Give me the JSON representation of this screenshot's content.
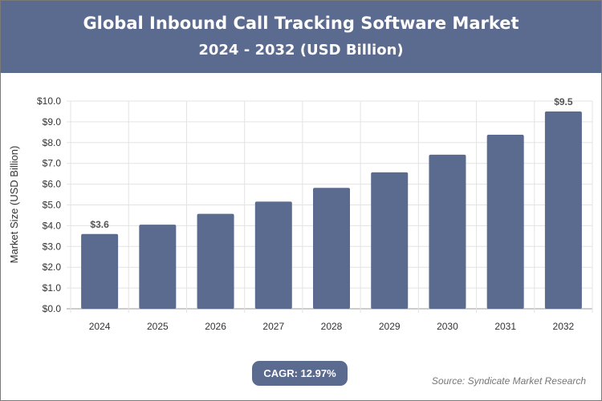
{
  "header": {
    "title": "Global Inbound Call Tracking Software Market",
    "subtitle": "2024 - 2032 (USD Billion)"
  },
  "footer": {
    "cagr": "CAGR: 12.97%",
    "source": "Source: Syndicate Market Research"
  },
  "colors": {
    "bar": "#5b6a8f",
    "header": "#5b6a8f"
  },
  "chart_data": {
    "type": "bar",
    "title": "Global Inbound Call Tracking Software Market",
    "subtitle": "2024 - 2032 (USD Billion)",
    "xlabel": "",
    "ylabel": "Market Size (USD Billion)",
    "categories": [
      "2024",
      "2025",
      "2026",
      "2027",
      "2028",
      "2029",
      "2030",
      "2031",
      "2032"
    ],
    "values": [
      3.6,
      4.05,
      4.57,
      5.16,
      5.82,
      6.57,
      7.42,
      8.38,
      9.5
    ],
    "data_labels": {
      "2024": "$3.6",
      "2032": "$9.5"
    },
    "ylim": [
      0,
      10
    ],
    "yticks": [
      "$0.0",
      "$1.0",
      "$2.0",
      "$3.0",
      "$4.0",
      "$5.0",
      "$6.0",
      "$7.0",
      "$8.0",
      "$9.0",
      "$10.0"
    ],
    "grid": true
  }
}
